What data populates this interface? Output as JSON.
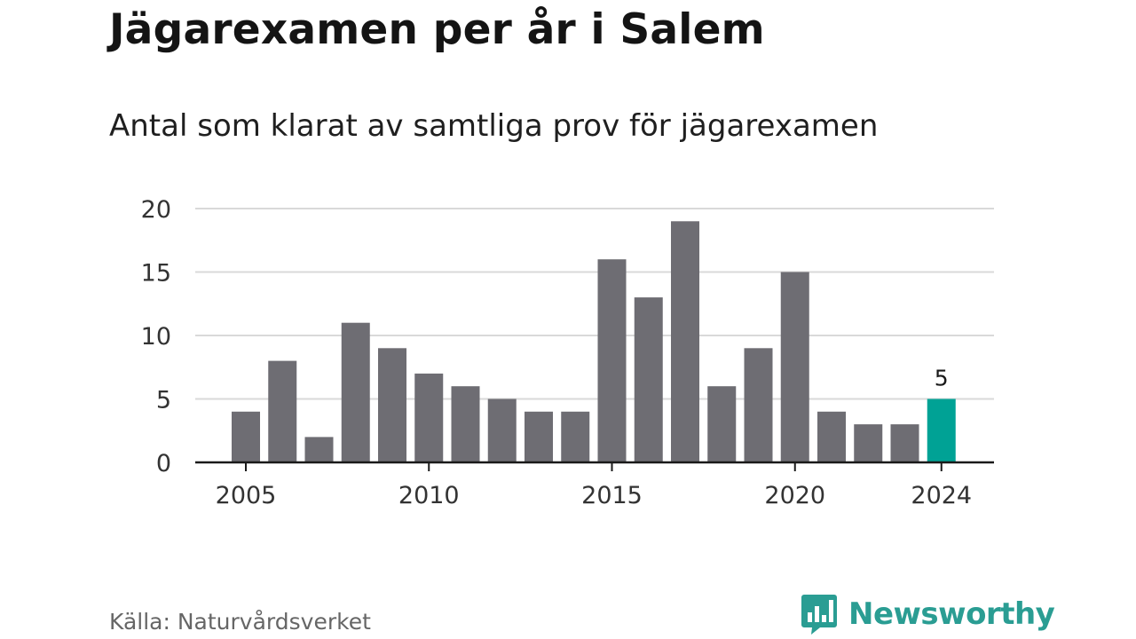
{
  "header": {
    "title": "Jägarexamen per år i Salem",
    "subtitle": "Antal som klarat av samtliga prov för jägarexamen"
  },
  "footer": {
    "source": "Källa: Naturvårdsverket",
    "brand": "Newsworthy"
  },
  "colors": {
    "bar": "#6e6d73",
    "highlight": "#00a295",
    "grid": "#d9d9d9",
    "axis": "#1a1a1a",
    "brand": "#2a9d93"
  },
  "icons": {
    "logo": "bar-chart-speech-bubble-icon"
  },
  "chart_data": {
    "type": "bar",
    "title": "Jägarexamen per år i Salem",
    "subtitle": "Antal som klarat av samtliga prov för jägarexamen",
    "categories": [
      2005,
      2006,
      2007,
      2008,
      2009,
      2010,
      2011,
      2012,
      2013,
      2014,
      2015,
      2016,
      2017,
      2018,
      2019,
      2020,
      2021,
      2022,
      2023,
      2024
    ],
    "values": [
      4,
      8,
      2,
      11,
      9,
      7,
      6,
      5,
      4,
      4,
      16,
      13,
      19,
      6,
      9,
      15,
      4,
      3,
      3,
      5
    ],
    "highlight": {
      "category": 2024,
      "label": "5"
    },
    "x_ticks": [
      "2005",
      "2010",
      "2015",
      "2020",
      "2024"
    ],
    "y_ticks": [
      "0",
      "5",
      "10",
      "15",
      "20"
    ],
    "ylim": [
      0,
      20
    ],
    "grid": true,
    "legend": "none"
  }
}
